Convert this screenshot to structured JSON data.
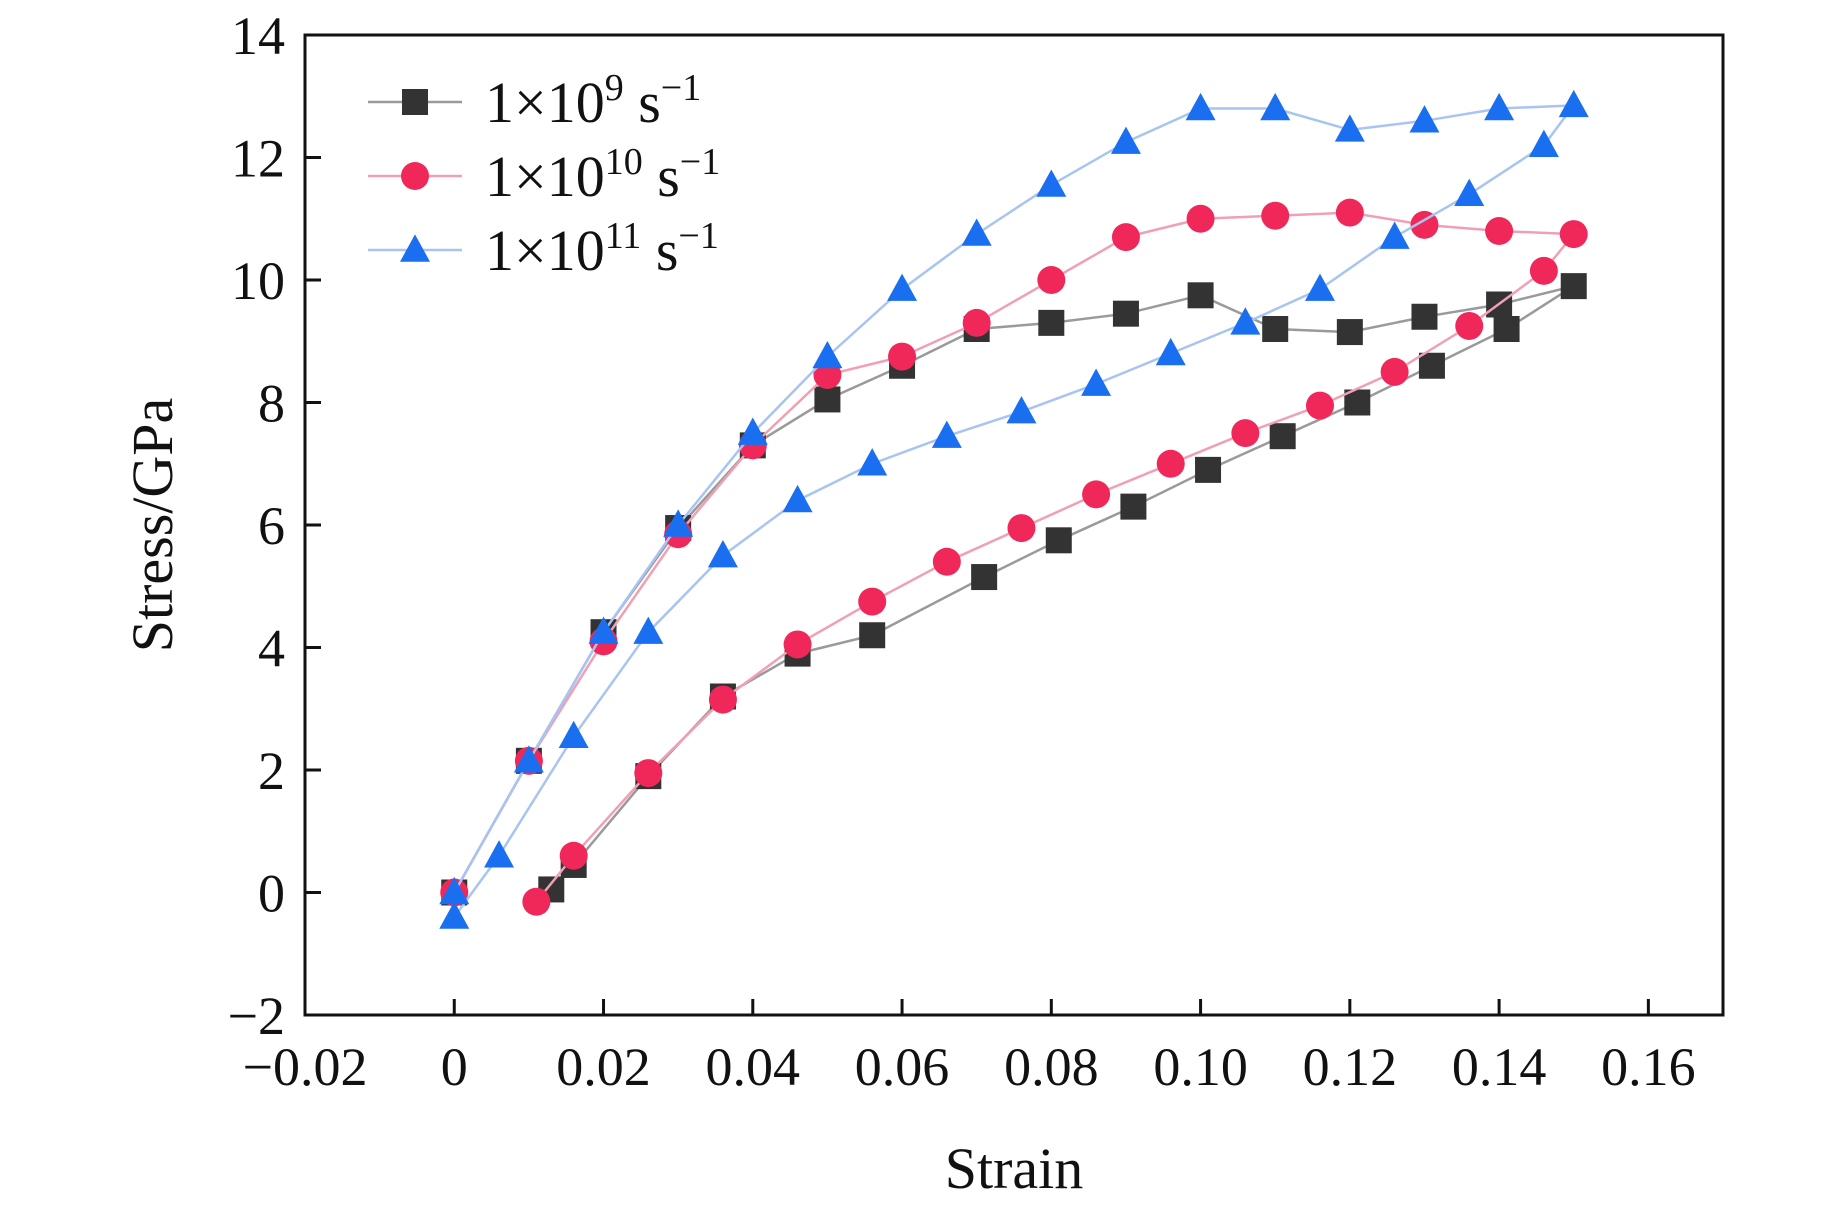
{
  "chart_data": {
    "type": "line",
    "xlabel": "Strain",
    "ylabel": "Stress/GPa",
    "xlim": [
      -0.02,
      0.17
    ],
    "ylim": [
      -2,
      14
    ],
    "x_ticks": [
      -0.02,
      0,
      0.02,
      0.04,
      0.06,
      0.08,
      0.1,
      0.12,
      0.14,
      0.16
    ],
    "x_tick_labels": [
      "−0.02",
      "0",
      "0.02",
      "0.04",
      "0.06",
      "0.08",
      "0.10",
      "0.12",
      "0.14",
      "0.16"
    ],
    "y_ticks": [
      -2,
      0,
      2,
      4,
      6,
      8,
      10,
      12,
      14
    ],
    "y_tick_labels": [
      "−2",
      "0",
      "2",
      "4",
      "6",
      "8",
      "10",
      "12",
      "14"
    ],
    "grid": false,
    "legend_position": "top-left",
    "series": [
      {
        "name": "1×10^9 s^−1",
        "legend": {
          "base": "1×10",
          "exp": "9",
          "unit": " s",
          "unit_exp": "−1"
        },
        "marker": "square",
        "color": "#333333",
        "line_color": "#9a9a9a",
        "x": [
          0,
          0.01,
          0.02,
          0.03,
          0.04,
          0.05,
          0.06,
          0.07,
          0.08,
          0.09,
          0.1,
          0.11,
          0.12,
          0.13,
          0.14,
          0.15,
          0.141,
          0.131,
          0.121,
          0.111,
          0.101,
          0.091,
          0.081,
          0.071,
          0.056,
          0.046,
          0.036,
          0.026,
          0.016,
          0.013
        ],
        "y": [
          0,
          2.15,
          4.25,
          5.95,
          7.3,
          8.05,
          8.6,
          9.2,
          9.3,
          9.45,
          9.75,
          9.2,
          9.15,
          9.4,
          9.6,
          9.9,
          9.2,
          8.6,
          8.0,
          7.45,
          6.9,
          6.3,
          5.75,
          5.15,
          4.2,
          3.9,
          3.2,
          1.9,
          0.45,
          0.05
        ]
      },
      {
        "name": "1×10^10 s^−1",
        "legend": {
          "base": "1×10",
          "exp": "10",
          "unit": " s",
          "unit_exp": "−1"
        },
        "marker": "circle",
        "color": "#f0285a",
        "line_color": "#f0a0b4",
        "x": [
          0,
          0.01,
          0.02,
          0.03,
          0.04,
          0.05,
          0.06,
          0.07,
          0.08,
          0.09,
          0.1,
          0.11,
          0.12,
          0.13,
          0.14,
          0.15,
          0.146,
          0.136,
          0.126,
          0.116,
          0.106,
          0.096,
          0.086,
          0.076,
          0.066,
          0.056,
          0.046,
          0.036,
          0.026,
          0.016,
          0.011
        ],
        "y": [
          0,
          2.15,
          4.1,
          5.85,
          7.3,
          8.45,
          8.75,
          9.3,
          10.0,
          10.7,
          11.0,
          11.05,
          11.1,
          10.9,
          10.8,
          10.75,
          10.15,
          9.25,
          8.5,
          7.95,
          7.5,
          7.0,
          6.5,
          5.95,
          5.4,
          4.75,
          4.05,
          3.15,
          1.95,
          0.6,
          -0.15
        ]
      },
      {
        "name": "1×10^11 s^−1",
        "legend": {
          "base": "1×10",
          "exp": "11",
          "unit": " s",
          "unit_exp": "−1"
        },
        "marker": "triangle",
        "color": "#1a6ff0",
        "line_color": "#a8c4f2",
        "x": [
          0,
          0.01,
          0.02,
          0.03,
          0.04,
          0.05,
          0.06,
          0.07,
          0.08,
          0.09,
          0.1,
          0.11,
          0.12,
          0.13,
          0.14,
          0.15,
          0.146,
          0.136,
          0.126,
          0.116,
          0.106,
          0.096,
          0.086,
          0.076,
          0.066,
          0.056,
          0.046,
          0.036,
          0.026,
          0.016,
          0.006,
          0
        ],
        "y": [
          0,
          2.15,
          4.25,
          6.0,
          7.5,
          8.75,
          9.85,
          10.75,
          11.55,
          12.25,
          12.8,
          12.8,
          12.45,
          12.6,
          12.8,
          12.85,
          12.2,
          11.4,
          10.7,
          9.85,
          9.3,
          8.8,
          8.3,
          7.85,
          7.45,
          7.0,
          6.4,
          5.5,
          4.25,
          2.55,
          0.6,
          -0.4
        ]
      }
    ]
  }
}
